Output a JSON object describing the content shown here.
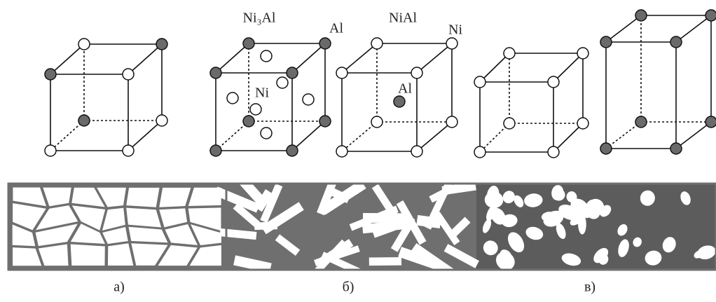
{
  "labels": {
    "ni3al_title": "Ni₃Al",
    "ni3al_corner": "Al",
    "ni3al_face": "Ni",
    "nial_title": "NiAl",
    "nial_corner": "Ni",
    "nial_center": "Al"
  },
  "captions": [
    "а)",
    "б)",
    "в)"
  ]
}
